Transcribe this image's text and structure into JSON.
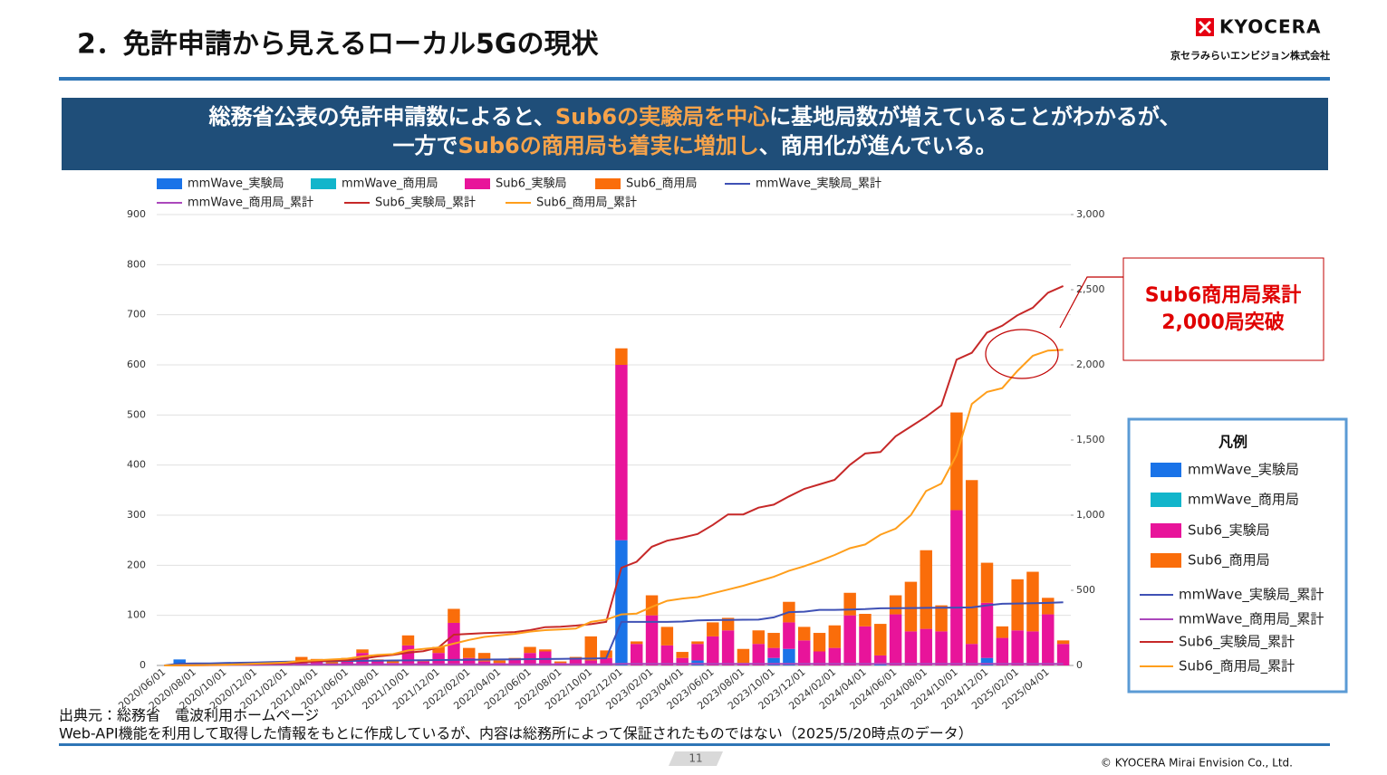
{
  "header": {
    "title": "2．免許申請から見えるローカル5Gの現状",
    "logo": "KYOCERA",
    "company": "京セラみらいエンビジョン株式会社"
  },
  "banner": {
    "lines": [
      [
        {
          "text": "総務省公表の免許申請数によると、",
          "highlight": false
        },
        {
          "text": "Sub6の実験局を中心",
          "highlight": true
        },
        {
          "text": "に基地局数が増えていることがわかるが、",
          "highlight": false
        }
      ],
      [
        {
          "text": "一方で",
          "highlight": false
        },
        {
          "text": "Sub6の商用局も着実に増加し",
          "highlight": true
        },
        {
          "text": "、商用化が進んでいる。",
          "highlight": false
        }
      ]
    ]
  },
  "chart_data": {
    "type": "combo",
    "legend": "top",
    "grid": true,
    "categories": [
      "2020/06/01",
      null,
      "2020/08/01",
      null,
      "2020/10/01",
      null,
      "2020/12/01",
      null,
      "2021/02/01",
      null,
      "2021/04/01",
      null,
      "2021/06/01",
      null,
      "2021/08/01",
      null,
      "2021/10/01",
      null,
      "2021/12/01",
      null,
      "2022/02/01",
      null,
      "2022/04/01",
      null,
      "2022/06/01",
      null,
      "2022/08/01",
      null,
      "2022/10/01",
      null,
      "2022/12/01",
      null,
      "2023/02/01",
      null,
      "2023/04/01",
      null,
      "2023/06/01",
      null,
      "2023/08/01",
      null,
      "2023/10/01",
      null,
      "2023/12/01",
      null,
      "2024/02/01",
      null,
      "2024/04/01",
      null,
      "2024/06/01",
      null,
      "2024/08/01",
      null,
      "2024/10/01",
      null,
      "2024/12/01",
      null,
      "2025/02/01",
      null,
      "2025/04/01",
      null
    ],
    "ylim": [
      0,
      900
    ],
    "yticks": [
      0,
      100,
      200,
      300,
      400,
      500,
      600,
      700,
      800,
      900
    ],
    "y2lim": [
      0,
      3000
    ],
    "y2ticks": [
      0,
      500,
      {
        "value": 1000,
        "label": "1,000"
      },
      {
        "value": 1500,
        "label": "1,500"
      },
      {
        "value": 2000,
        "label": "2,000"
      },
      {
        "value": 2500,
        "label": "2,500"
      },
      {
        "value": 3000,
        "label": "3,000"
      }
    ],
    "series": [
      {
        "name": "mmWave_実験局",
        "type": "bar",
        "color": "#1a73e8",
        "values": [
          0,
          12,
          0,
          0,
          0,
          0,
          0,
          2,
          0,
          0,
          0,
          0,
          0,
          0,
          0,
          0,
          0,
          0,
          0,
          0,
          0,
          0,
          0,
          0,
          0,
          0,
          0,
          0,
          0,
          0,
          250,
          0,
          0,
          0,
          0,
          10,
          0,
          0,
          0,
          0,
          15,
          33,
          0,
          0,
          0,
          0,
          0,
          5,
          0,
          0,
          0,
          0,
          0,
          0,
          15,
          0,
          0,
          0,
          0,
          0
        ]
      },
      {
        "name": "mmWave_商用局",
        "type": "bar",
        "color": "#12b5cb",
        "values": [
          0,
          0,
          0,
          0,
          0,
          0,
          0,
          0,
          0,
          0,
          0,
          0,
          0,
          0,
          0,
          0,
          0,
          0,
          0,
          0,
          0,
          0,
          0,
          0,
          0,
          0,
          0,
          0,
          0,
          0,
          0,
          0,
          0,
          0,
          0,
          0,
          0,
          0,
          0,
          0,
          0,
          0,
          0,
          0,
          0,
          0,
          0,
          0,
          0,
          0,
          0,
          0,
          0,
          0,
          0,
          0,
          0,
          0,
          0,
          0
        ]
      },
      {
        "name": "Sub6_実験局",
        "type": "bar",
        "color": "#e8149a",
        "values": [
          0,
          0,
          0,
          0,
          0,
          0,
          2,
          3,
          2,
          5,
          8,
          3,
          8,
          25,
          10,
          5,
          40,
          8,
          25,
          85,
          15,
          8,
          5,
          12,
          25,
          28,
          5,
          15,
          10,
          15,
          350,
          43,
          100,
          40,
          15,
          33,
          58,
          70,
          5,
          43,
          20,
          53,
          50,
          28,
          35,
          100,
          78,
          15,
          102,
          68,
          73,
          68,
          310,
          43,
          110,
          55,
          70,
          68,
          102,
          43
        ]
      },
      {
        "name": "Sub6_商用局",
        "type": "bar",
        "color": "#fa6d0a",
        "values": [
          0,
          0,
          2,
          1,
          2,
          3,
          3,
          3,
          5,
          12,
          5,
          5,
          7,
          7,
          2,
          5,
          20,
          2,
          12,
          28,
          20,
          17,
          5,
          3,
          12,
          4,
          3,
          2,
          48,
          15,
          33,
          5,
          40,
          37,
          12,
          5,
          28,
          25,
          28,
          27,
          30,
          41,
          27,
          37,
          45,
          45,
          25,
          63,
          38,
          99,
          157,
          52,
          195,
          327,
          80,
          23,
          102,
          119,
          33,
          7
        ]
      },
      {
        "name": "mmWave_実験局_累計",
        "type": "line",
        "axis": "y2",
        "color": "#3f51b5",
        "values": [
          0,
          12,
          13,
          14,
          16,
          18,
          20,
          22,
          25,
          27,
          28,
          29,
          30,
          31,
          32,
          33,
          34,
          35,
          36,
          37,
          38,
          39,
          40,
          41,
          42,
          43,
          44,
          45,
          46,
          48,
          290,
          290,
          290,
          290,
          292,
          300,
          302,
          303,
          304,
          305,
          320,
          355,
          358,
          370,
          370,
          372,
          375,
          380,
          381,
          382,
          383,
          384,
          385,
          386,
          400,
          410,
          412,
          414,
          416,
          420
        ]
      },
      {
        "name": "mmWave_商用局_累計",
        "type": "line",
        "axis": "y2",
        "color": "#ab47bc",
        "values": [
          0,
          0,
          1,
          2,
          3,
          4,
          5,
          6,
          7,
          8,
          8,
          8,
          8,
          8,
          8,
          8,
          8,
          8,
          8,
          8,
          8,
          8,
          8,
          8,
          8,
          8,
          8,
          8,
          8,
          8,
          10,
          10,
          10,
          10,
          10,
          10,
          10,
          10,
          10,
          10,
          10,
          10,
          10,
          10,
          10,
          10,
          10,
          10,
          10,
          10,
          10,
          10,
          10,
          10,
          10,
          10,
          10,
          10,
          10,
          10
        ]
      },
      {
        "name": "Sub6_実験局_累計",
        "type": "line",
        "axis": "y2",
        "color": "#c62828",
        "values": [
          0,
          0,
          2,
          3,
          5,
          8,
          10,
          12,
          15,
          20,
          28,
          32,
          35,
          45,
          60,
          70,
          85,
          95,
          120,
          205,
          210,
          215,
          218,
          222,
          235,
          255,
          258,
          265,
          275,
          290,
          650,
          690,
          790,
          830,
          850,
          875,
          935,
          1005,
          1005,
          1050,
          1070,
          1125,
          1175,
          1205,
          1235,
          1335,
          1410,
          1420,
          1525,
          1590,
          1655,
          1730,
          2035,
          2080,
          2215,
          2260,
          2330,
          2380,
          2480,
          2525
        ]
      },
      {
        "name": "Sub6_商用局_累計",
        "type": "line",
        "axis": "y2",
        "color": "#ff9e1b",
        "values": [
          0,
          1,
          2,
          3,
          5,
          8,
          12,
          15,
          20,
          30,
          35,
          40,
          45,
          60,
          70,
          75,
          100,
          110,
          120,
          145,
          170,
          190,
          200,
          210,
          225,
          235,
          240,
          245,
          290,
          305,
          340,
          345,
          390,
          430,
          445,
          455,
          480,
          505,
          530,
          560,
          590,
          630,
          660,
          695,
          735,
          780,
          805,
          870,
          910,
          1000,
          1160,
          1210,
          1400,
          1740,
          1820,
          1845,
          1960,
          2060,
          2095,
          2100
        ]
      }
    ]
  },
  "legend_box": {
    "title": "凡例"
  },
  "callout": {
    "lines": [
      "Sub6商用局累計",
      "2,000局突破"
    ]
  },
  "source": {
    "lines": [
      "出典元：総務省　電波利用ホームページ",
      "Web-API機能を利用して取得した情報をもとに作成しているが、内容は総務所によって保証されたものではない（2025/5/20時点のデータ）"
    ]
  },
  "footer": {
    "page": "11",
    "copyright": "© KYOCERA Mirai Envision Co., Ltd."
  }
}
